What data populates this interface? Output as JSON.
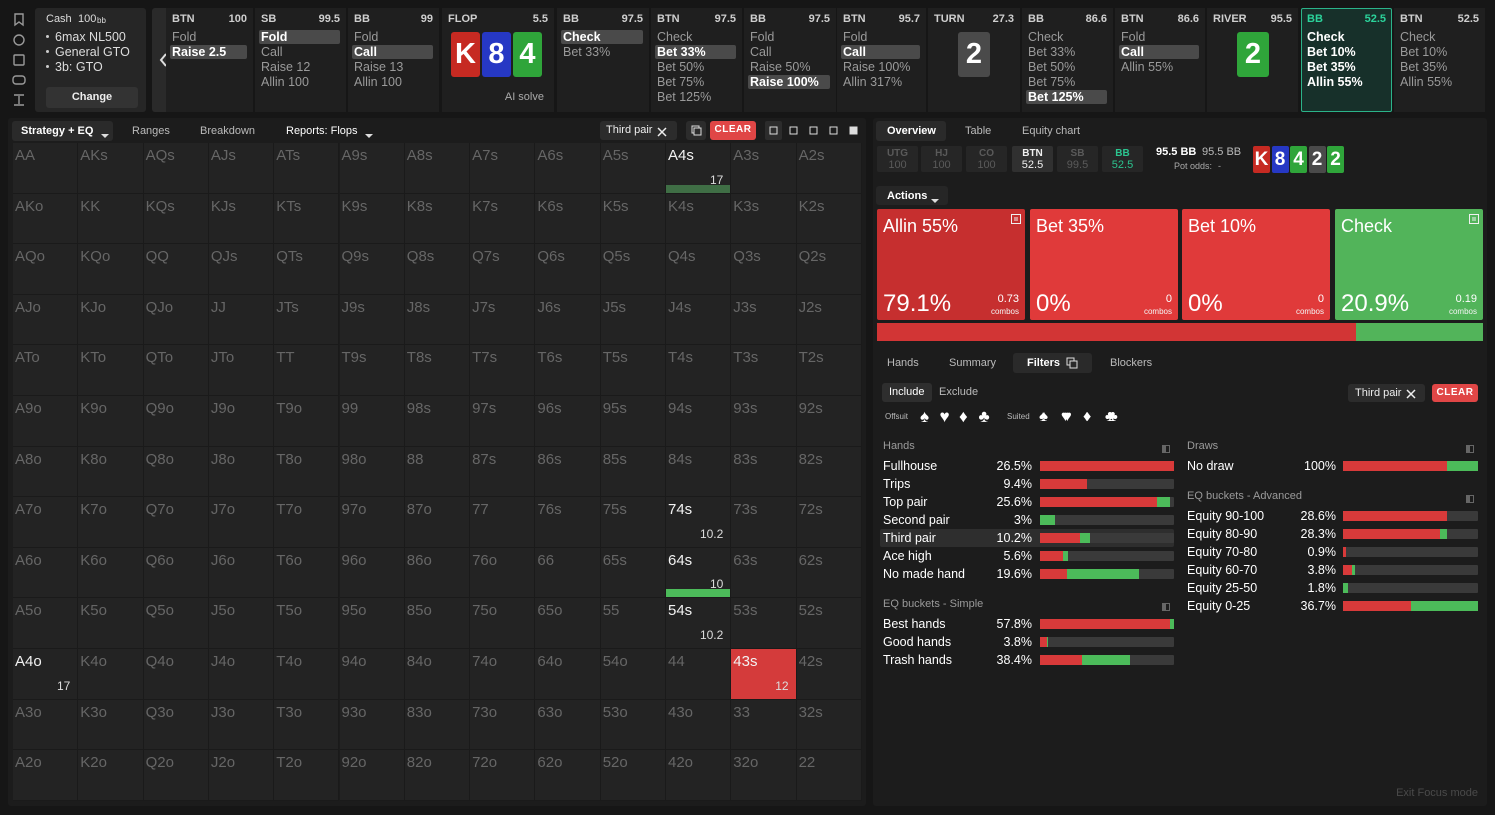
{
  "game": {
    "type": "Cash",
    "depth": "100",
    "depth_unit": "bb",
    "details": [
      "6max NL500",
      "General GTO",
      "3b: GTO"
    ],
    "button": "Change"
  },
  "action_bar": [
    {
      "label": "BTN",
      "stack": 100,
      "options": [
        "Fold",
        "Raise 2.5"
      ],
      "selected": 1
    },
    {
      "label": "SB",
      "stack": 99.5,
      "options": [
        "Fold",
        "Call",
        "Raise 12",
        "Allin 100"
      ],
      "selected": 0
    },
    {
      "label": "BB",
      "stack": 99,
      "options": [
        "Fold",
        "Call",
        "Raise 13",
        "Allin 100"
      ],
      "selected": 1
    },
    {
      "label": "FLOP",
      "stack": 5.5,
      "cards": [
        {
          "rank": "K",
          "color": "#c62a22"
        },
        {
          "rank": "8",
          "color": "#2638c4"
        },
        {
          "rank": "4",
          "color": "#2fa53a"
        }
      ],
      "button": "AI solve"
    },
    {
      "label": "BB",
      "stack": 97.5,
      "options": [
        "Check",
        "Bet 33%"
      ],
      "selected": 0
    },
    {
      "label": "BTN",
      "stack": 97.5,
      "options": [
        "Check",
        "Bet 33%",
        "Bet 50%",
        "Bet 75%",
        "Bet 125%"
      ],
      "selected": 1
    },
    {
      "label": "BB",
      "stack": 97.5,
      "options": [
        "Fold",
        "Call",
        "Raise 50%",
        "Raise 100%"
      ],
      "selected": 3
    },
    {
      "label": "BTN",
      "stack": 95.7,
      "options": [
        "Fold",
        "Call",
        "Raise 100%",
        "Allin 317%"
      ],
      "selected": 1
    },
    {
      "label": "TURN",
      "stack": 27.3,
      "cards": [
        {
          "rank": "2",
          "color": "#4a4a4a"
        }
      ]
    },
    {
      "label": "BB",
      "stack": 86.6,
      "options": [
        "Check",
        "Bet 33%",
        "Bet 50%",
        "Bet 75%",
        "Bet 125%"
      ],
      "selected": 4
    },
    {
      "label": "BTN",
      "stack": 86.6,
      "options": [
        "Fold",
        "Call",
        "Allin 55%"
      ],
      "selected": 1
    },
    {
      "label": "RIVER",
      "stack": 95.5,
      "cards": [
        {
          "rank": "2",
          "color": "#2fa53a"
        }
      ]
    },
    {
      "label": "BB",
      "stack": 52.5,
      "options": [
        "Check",
        "Bet 10%",
        "Bet 35%",
        "Allin 55%"
      ],
      "active": true
    },
    {
      "label": "BTN",
      "stack": 52.5,
      "options": [
        "Check",
        "Bet 10%",
        "Bet 35%",
        "Allin 55%"
      ]
    }
  ],
  "left_panel": {
    "tabs": [
      "Strategy + EQ",
      "Ranges",
      "Breakdown",
      "Reports: Flops"
    ],
    "chip": "Third pair",
    "clear": "CLEAR",
    "grid": [
      [
        {
          "hand": "AA"
        },
        {
          "hand": "AKs"
        },
        {
          "hand": "AQs"
        },
        {
          "hand": "AJs"
        },
        {
          "hand": "ATs"
        },
        {
          "hand": "A9s"
        },
        {
          "hand": "A8s"
        },
        {
          "hand": "A7s"
        },
        {
          "hand": "A6s"
        },
        {
          "hand": "A5s"
        },
        {
          "hand": "A4s",
          "count": 17,
          "bar": "#3f6e45"
        },
        {
          "hand": "A3s"
        },
        {
          "hand": "A2s"
        }
      ],
      [
        {
          "hand": "AKo"
        },
        {
          "hand": "KK"
        },
        {
          "hand": "KQs"
        },
        {
          "hand": "KJs"
        },
        {
          "hand": "KTs"
        },
        {
          "hand": "K9s"
        },
        {
          "hand": "K8s"
        },
        {
          "hand": "K7s"
        },
        {
          "hand": "K6s"
        },
        {
          "hand": "K5s"
        },
        {
          "hand": "K4s"
        },
        {
          "hand": "K3s"
        },
        {
          "hand": "K2s"
        }
      ],
      [
        {
          "hand": "AQo"
        },
        {
          "hand": "KQo"
        },
        {
          "hand": "QQ"
        },
        {
          "hand": "QJs"
        },
        {
          "hand": "QTs"
        },
        {
          "hand": "Q9s"
        },
        {
          "hand": "Q8s"
        },
        {
          "hand": "Q7s"
        },
        {
          "hand": "Q6s"
        },
        {
          "hand": "Q5s"
        },
        {
          "hand": "Q4s"
        },
        {
          "hand": "Q3s"
        },
        {
          "hand": "Q2s"
        }
      ],
      [
        {
          "hand": "AJo"
        },
        {
          "hand": "KJo"
        },
        {
          "hand": "QJo"
        },
        {
          "hand": "JJ"
        },
        {
          "hand": "JTs"
        },
        {
          "hand": "J9s"
        },
        {
          "hand": "J8s"
        },
        {
          "hand": "J7s"
        },
        {
          "hand": "J6s"
        },
        {
          "hand": "J5s"
        },
        {
          "hand": "J4s"
        },
        {
          "hand": "J3s"
        },
        {
          "hand": "J2s"
        }
      ],
      [
        {
          "hand": "ATo"
        },
        {
          "hand": "KTo"
        },
        {
          "hand": "QTo"
        },
        {
          "hand": "JTo"
        },
        {
          "hand": "TT"
        },
        {
          "hand": "T9s"
        },
        {
          "hand": "T8s"
        },
        {
          "hand": "T7s"
        },
        {
          "hand": "T6s"
        },
        {
          "hand": "T5s"
        },
        {
          "hand": "T4s"
        },
        {
          "hand": "T3s"
        },
        {
          "hand": "T2s"
        }
      ],
      [
        {
          "hand": "A9o"
        },
        {
          "hand": "K9o"
        },
        {
          "hand": "Q9o"
        },
        {
          "hand": "J9o"
        },
        {
          "hand": "T9o"
        },
        {
          "hand": "99"
        },
        {
          "hand": "98s"
        },
        {
          "hand": "97s"
        },
        {
          "hand": "96s"
        },
        {
          "hand": "95s"
        },
        {
          "hand": "94s"
        },
        {
          "hand": "93s"
        },
        {
          "hand": "92s"
        }
      ],
      [
        {
          "hand": "A8o"
        },
        {
          "hand": "K8o"
        },
        {
          "hand": "Q8o"
        },
        {
          "hand": "J8o"
        },
        {
          "hand": "T8o"
        },
        {
          "hand": "98o"
        },
        {
          "hand": "88"
        },
        {
          "hand": "87s"
        },
        {
          "hand": "86s"
        },
        {
          "hand": "85s"
        },
        {
          "hand": "84s"
        },
        {
          "hand": "83s"
        },
        {
          "hand": "82s"
        }
      ],
      [
        {
          "hand": "A7o"
        },
        {
          "hand": "K7o"
        },
        {
          "hand": "Q7o"
        },
        {
          "hand": "J7o"
        },
        {
          "hand": "T7o"
        },
        {
          "hand": "97o"
        },
        {
          "hand": "87o"
        },
        {
          "hand": "77"
        },
        {
          "hand": "76s"
        },
        {
          "hand": "75s"
        },
        {
          "hand": "74s",
          "count": 10.2
        },
        {
          "hand": "73s"
        },
        {
          "hand": "72s"
        }
      ],
      [
        {
          "hand": "A6o"
        },
        {
          "hand": "K6o"
        },
        {
          "hand": "Q6o"
        },
        {
          "hand": "J6o"
        },
        {
          "hand": "T6o"
        },
        {
          "hand": "96o"
        },
        {
          "hand": "86o"
        },
        {
          "hand": "76o"
        },
        {
          "hand": "66"
        },
        {
          "hand": "65s"
        },
        {
          "hand": "64s",
          "count": 10,
          "bar": "#4cbb5a"
        },
        {
          "hand": "63s"
        },
        {
          "hand": "62s"
        }
      ],
      [
        {
          "hand": "A5o"
        },
        {
          "hand": "K5o"
        },
        {
          "hand": "Q5o"
        },
        {
          "hand": "J5o"
        },
        {
          "hand": "T5o"
        },
        {
          "hand": "95o"
        },
        {
          "hand": "85o"
        },
        {
          "hand": "75o"
        },
        {
          "hand": "65o"
        },
        {
          "hand": "55"
        },
        {
          "hand": "54s",
          "count": 10.2
        },
        {
          "hand": "53s"
        },
        {
          "hand": "52s"
        }
      ],
      [
        {
          "hand": "A4o",
          "count": 17
        },
        {
          "hand": "K4o"
        },
        {
          "hand": "Q4o"
        },
        {
          "hand": "J4o"
        },
        {
          "hand": "T4o"
        },
        {
          "hand": "94o"
        },
        {
          "hand": "84o"
        },
        {
          "hand": "74o"
        },
        {
          "hand": "64o"
        },
        {
          "hand": "54o"
        },
        {
          "hand": "44"
        },
        {
          "hand": "43s",
          "count": 12,
          "fill": "#d43b3b"
        },
        {
          "hand": "42s"
        }
      ],
      [
        {
          "hand": "A3o"
        },
        {
          "hand": "K3o"
        },
        {
          "hand": "Q3o"
        },
        {
          "hand": "J3o"
        },
        {
          "hand": "T3o"
        },
        {
          "hand": "93o"
        },
        {
          "hand": "83o"
        },
        {
          "hand": "73o"
        },
        {
          "hand": "63o"
        },
        {
          "hand": "53o"
        },
        {
          "hand": "43o"
        },
        {
          "hand": "33"
        },
        {
          "hand": "32s"
        }
      ],
      [
        {
          "hand": "A2o"
        },
        {
          "hand": "K2o"
        },
        {
          "hand": "Q2o"
        },
        {
          "hand": "J2o"
        },
        {
          "hand": "T2o"
        },
        {
          "hand": "92o"
        },
        {
          "hand": "82o"
        },
        {
          "hand": "72o"
        },
        {
          "hand": "62o"
        },
        {
          "hand": "52o"
        },
        {
          "hand": "42o"
        },
        {
          "hand": "32o"
        },
        {
          "hand": "22"
        }
      ]
    ]
  },
  "right_panel": {
    "tabs": [
      "Overview",
      "Table",
      "Equity chart"
    ],
    "seats": [
      {
        "pos": "UTG",
        "stack": 100,
        "color": "#5a5a5a"
      },
      {
        "pos": "HJ",
        "stack": 100,
        "color": "#5a5a5a"
      },
      {
        "pos": "CO",
        "stack": 100,
        "color": "#5a5a5a"
      },
      {
        "pos": "BTN",
        "stack": 52.5,
        "color": "#f0f0f0"
      },
      {
        "pos": "SB",
        "stack": 99.5,
        "color": "#5a5a5a"
      },
      {
        "pos": "BB",
        "stack": 52.5,
        "color": "#2bc48f"
      }
    ],
    "pot": "95.5 BB",
    "pot_effective": "95.5 BB",
    "pot_odds_label": "Pot odds:",
    "pot_odds": "-",
    "board": [
      {
        "rank": "K",
        "color": "#c62a22"
      },
      {
        "rank": "8",
        "color": "#2638c4"
      },
      {
        "rank": "4",
        "color": "#2fa53a"
      },
      {
        "rank": "2",
        "color": "#4a4a4a"
      },
      {
        "rank": "2",
        "color": "#2fa53a"
      }
    ],
    "actions_menu": "Actions",
    "strategies": [
      {
        "name": "Allin 55%",
        "frequency": 79.1,
        "frequency_label": "79.1%",
        "combos": 0.73,
        "combos_label": "combos",
        "color": "#c62f2f"
      },
      {
        "name": "Bet 35%",
        "frequency": 0,
        "frequency_label": "0%",
        "combos": 0,
        "combos_label": "combos",
        "color": "#e03a3a"
      },
      {
        "name": "Bet 10%",
        "frequency": 0,
        "frequency_label": "0%",
        "combos": 0,
        "combos_label": "combos",
        "color": "#e03a3a"
      },
      {
        "name": "Check",
        "frequency": 20.9,
        "frequency_label": "20.9%",
        "combos": 0.19,
        "combos_label": "combos",
        "color": "#52b45a"
      }
    ],
    "subtabs": [
      "Hands",
      "Summary",
      "Filters",
      "Blockers"
    ],
    "include": "Include",
    "exclude": "Exclude",
    "offsuit": "Offsuit",
    "offsuit_suits": [
      "♠",
      "♥",
      "♦",
      "♣"
    ],
    "suited": "Suited",
    "suited_suits": [
      "♠♠",
      "♥♥",
      "♦♦",
      "♣♣"
    ],
    "chip": "Third pair",
    "clear": "CLEAR",
    "hands": {
      "title": "Hands",
      "rows": [
        {
          "name": "Fullhouse",
          "pct": "26.5%",
          "red": 100,
          "green": 0
        },
        {
          "name": "Trips",
          "pct": "9.4%",
          "red": 35,
          "green": 0
        },
        {
          "name": "Top pair",
          "pct": "25.6%",
          "red": 87,
          "green": 10
        },
        {
          "name": "Second pair",
          "pct": "3%",
          "red": 0,
          "green": 11
        },
        {
          "name": "Third pair",
          "pct": "10.2%",
          "red": 30,
          "green": 7
        },
        {
          "name": "Ace high",
          "pct": "5.6%",
          "red": 17,
          "green": 4
        },
        {
          "name": "No made hand",
          "pct": "19.6%",
          "red": 20,
          "green": 54
        }
      ]
    },
    "eq_simple": {
      "title": "EQ buckets - Simple",
      "rows": [
        {
          "name": "Best hands",
          "pct": "57.8%",
          "red": 97,
          "green": 3
        },
        {
          "name": "Good hands",
          "pct": "3.8%",
          "red": 5,
          "green": 1
        },
        {
          "name": "Trash hands",
          "pct": "38.4%",
          "red": 31,
          "green": 36
        }
      ]
    },
    "draws": {
      "title": "Draws",
      "rows": [
        {
          "name": "No draw",
          "pct": "100%",
          "red": 77,
          "green": 23
        }
      ]
    },
    "eq_advanced": {
      "title": "EQ buckets - Advanced",
      "rows": [
        {
          "name": "Equity 90-100",
          "pct": "28.6%",
          "red": 77,
          "green": 0
        },
        {
          "name": "Equity 80-90",
          "pct": "28.3%",
          "red": 72,
          "green": 5
        },
        {
          "name": "Equity 70-80",
          "pct": "0.9%",
          "red": 2,
          "green": 0
        },
        {
          "name": "Equity 60-70",
          "pct": "3.8%",
          "red": 7,
          "green": 2
        },
        {
          "name": "Equity 25-50",
          "pct": "1.8%",
          "red": 0,
          "green": 4
        },
        {
          "name": "Equity 0-25",
          "pct": "36.7%",
          "red": 50,
          "green": 50
        }
      ]
    }
  },
  "footer": "Exit Focus mode"
}
